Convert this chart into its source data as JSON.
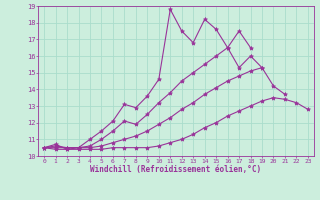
{
  "xlabel": "Windchill (Refroidissement éolien,°C)",
  "background_color": "#cceedd",
  "grid_color": "#aaddcc",
  "line_color": "#993399",
  "x": [
    0,
    1,
    2,
    3,
    4,
    5,
    6,
    7,
    8,
    9,
    10,
    11,
    12,
    13,
    14,
    15,
    16,
    17,
    18,
    19,
    20,
    21,
    22,
    23
  ],
  "line1_y": [
    10.5,
    10.7,
    10.4,
    10.4,
    10.4,
    10.4,
    10.5,
    10.5,
    10.5,
    10.5,
    10.6,
    10.8,
    11.0,
    11.3,
    11.7,
    12.0,
    12.4,
    12.7,
    13.0,
    13.3,
    13.5,
    13.4,
    13.2,
    12.8
  ],
  "line2_y": [
    10.5,
    10.4,
    10.4,
    10.5,
    10.5,
    10.6,
    10.8,
    11.0,
    11.2,
    11.5,
    11.9,
    12.3,
    12.8,
    13.2,
    13.7,
    14.1,
    14.5,
    14.8,
    15.1,
    15.3,
    14.2,
    13.7,
    null,
    null
  ],
  "line3_y": [
    10.5,
    10.5,
    10.5,
    10.5,
    10.6,
    11.0,
    11.5,
    12.1,
    11.9,
    12.5,
    13.2,
    13.8,
    14.5,
    15.0,
    15.5,
    16.0,
    16.5,
    15.3,
    16.0,
    15.3,
    null,
    null,
    null,
    null
  ],
  "line4_y": [
    10.5,
    10.6,
    10.5,
    10.5,
    11.0,
    11.5,
    12.1,
    13.1,
    12.9,
    13.6,
    14.6,
    18.8,
    17.5,
    16.8,
    18.2,
    17.6,
    16.5,
    17.5,
    16.5,
    null,
    null,
    null,
    null,
    null
  ],
  "ylim": [
    10,
    19
  ],
  "xlim": [
    -0.5,
    23.5
  ],
  "yticks": [
    10,
    11,
    12,
    13,
    14,
    15,
    16,
    17,
    18,
    19
  ],
  "xticks": [
    0,
    1,
    2,
    3,
    4,
    5,
    6,
    7,
    8,
    9,
    10,
    11,
    12,
    13,
    14,
    15,
    16,
    17,
    18,
    19,
    20,
    21,
    22,
    23
  ]
}
